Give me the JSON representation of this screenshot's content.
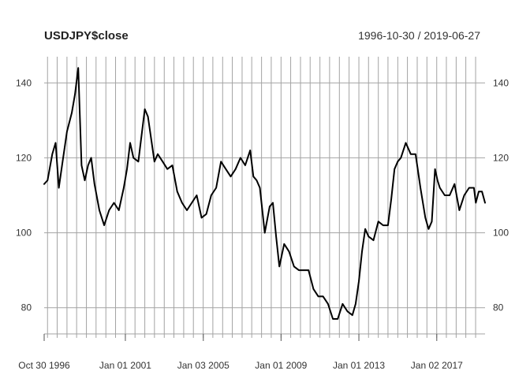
{
  "chart_data": {
    "type": "line",
    "title": "USDJPY$close",
    "date_range_label": "1996-10-30 / 2019-06-27",
    "x_start": "1996-10-30",
    "x_end": "2019-06-27",
    "ylim": [
      73,
      147
    ],
    "y_ticks": [
      80,
      100,
      120,
      140
    ],
    "x_tick_labels": [
      {
        "date": "1996-10-30",
        "label": "Oct 30 1996"
      },
      {
        "date": "2001-01-01",
        "label": "Jan 01 2001"
      },
      {
        "date": "2005-01-03",
        "label": "Jan 03 2005"
      },
      {
        "date": "2009-01-01",
        "label": "Jan 01 2009"
      },
      {
        "date": "2013-01-01",
        "label": "Jan 01 2013"
      },
      {
        "date": "2017-01-02",
        "label": "Jan 02 2017"
      }
    ],
    "grid": true,
    "line_color": "#000000",
    "series": [
      {
        "x": [
          "1996-10-30",
          "1997-01-01",
          "1997-04-01",
          "1997-06-01",
          "1997-08-01",
          "1997-10-01",
          "1998-01-01",
          "1998-04-01",
          "1998-06-01",
          "1998-08-01",
          "1998-10-01",
          "1998-12-01",
          "1999-02-01",
          "1999-04-01",
          "1999-06-01",
          "1999-09-01",
          "1999-12-01",
          "2000-03-01",
          "2000-06-01",
          "2000-09-01",
          "2000-12-01",
          "2001-02-01",
          "2001-04-01",
          "2001-06-01",
          "2001-09-01",
          "2001-11-01",
          "2002-01-01",
          "2002-03-01",
          "2002-05-01",
          "2002-07-01",
          "2002-09-01",
          "2002-12-01",
          "2003-03-01",
          "2003-06-01",
          "2003-09-01",
          "2003-12-01",
          "2004-03-01",
          "2004-06-01",
          "2004-09-01",
          "2004-12-01",
          "2005-03-01",
          "2005-06-01",
          "2005-09-01",
          "2005-12-01",
          "2006-03-01",
          "2006-06-01",
          "2006-09-01",
          "2006-12-01",
          "2007-03-01",
          "2007-06-01",
          "2007-08-01",
          "2007-10-01",
          "2007-12-01",
          "2008-03-01",
          "2008-06-01",
          "2008-08-01",
          "2008-10-01",
          "2008-12-01",
          "2009-03-01",
          "2009-06-01",
          "2009-09-01",
          "2009-12-01",
          "2010-03-01",
          "2010-06-01",
          "2010-09-01",
          "2010-12-01",
          "2011-03-01",
          "2011-06-01",
          "2011-09-01",
          "2011-12-01",
          "2012-03-01",
          "2012-06-01",
          "2012-09-01",
          "2012-11-01",
          "2013-01-01",
          "2013-03-01",
          "2013-05-01",
          "2013-07-01",
          "2013-10-01",
          "2014-01-01",
          "2014-04-01",
          "2014-07-01",
          "2014-09-01",
          "2014-11-01",
          "2015-01-01",
          "2015-03-01",
          "2015-06-01",
          "2015-09-01",
          "2015-12-01",
          "2016-03-01",
          "2016-06-01",
          "2016-08-01",
          "2016-10-01",
          "2016-12-01",
          "2017-01-15",
          "2017-03-01",
          "2017-06-01",
          "2017-09-01",
          "2017-12-01",
          "2018-03-01",
          "2018-06-01",
          "2018-09-01",
          "2018-12-01",
          "2019-01-05",
          "2019-03-01",
          "2019-05-01",
          "2019-06-27"
        ],
        "y": [
          113,
          114,
          121,
          124,
          112,
          118,
          127,
          132,
          137,
          144,
          118,
          114,
          118,
          120,
          113,
          106,
          102,
          106,
          108,
          106,
          112,
          117,
          124,
          120,
          119,
          126,
          133,
          131,
          125,
          119,
          121,
          119,
          117,
          118,
          111,
          108,
          106,
          108,
          110,
          104,
          105,
          110,
          112,
          119,
          117,
          115,
          117,
          120,
          118,
          122,
          115,
          114,
          112,
          100,
          107,
          108,
          99,
          91,
          97,
          95,
          91,
          90,
          90,
          90,
          85,
          83,
          83,
          81,
          77,
          77,
          81,
          79,
          78,
          81,
          87,
          95,
          101,
          99,
          98,
          103,
          102,
          102,
          109,
          117,
          119,
          120,
          124,
          121,
          121,
          112,
          104,
          101,
          103,
          117,
          114,
          112,
          110,
          110,
          113,
          106,
          110,
          112,
          112,
          108,
          111,
          111,
          108
        ]
      }
    ]
  }
}
